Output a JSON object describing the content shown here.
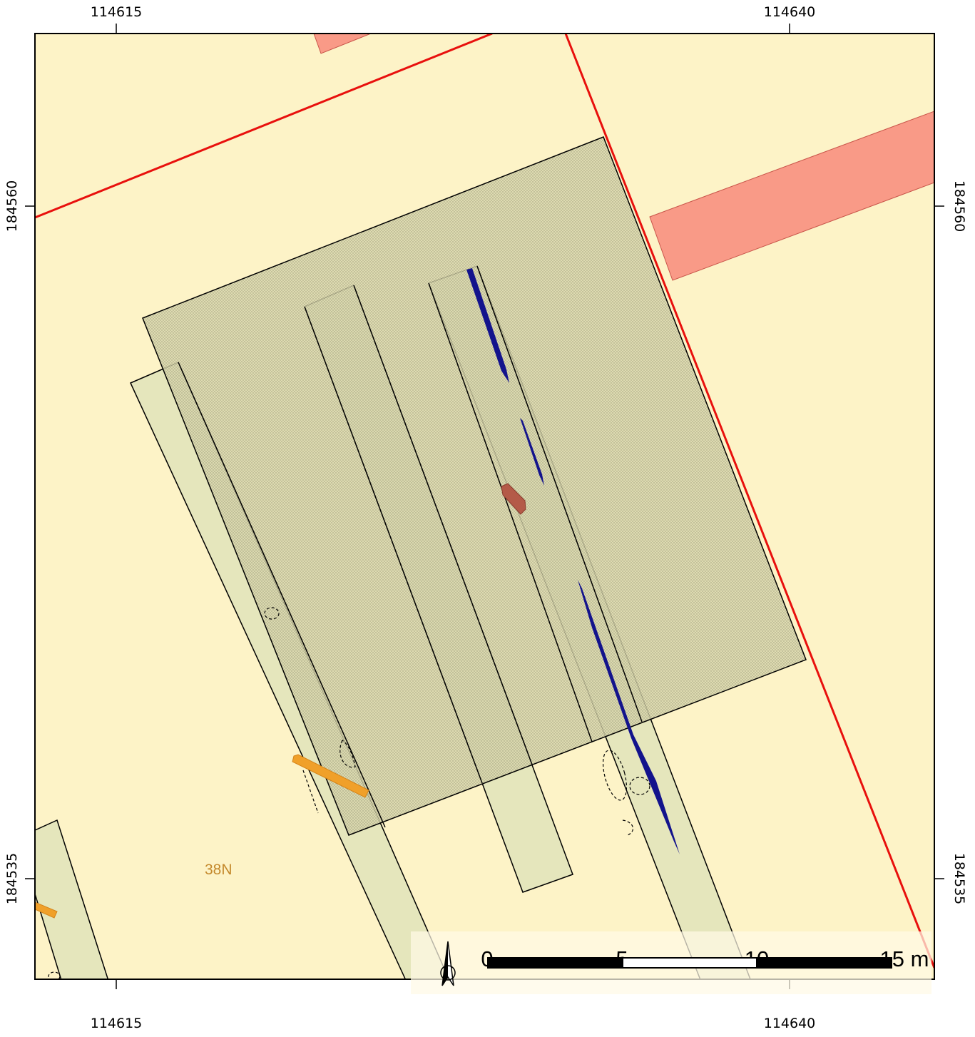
{
  "map": {
    "colors": {
      "background": "#fdf3c7",
      "trench_fill": "#e5e6bc",
      "excavation_area": "#d9d7ad",
      "building": "#f99a87",
      "boundary": "#e8100d",
      "linear_feature": "#13138c",
      "deposit": "#b45a48",
      "orange_feature": "#f0a02a",
      "label": "#c4892c"
    },
    "label": "38N"
  },
  "grid": {
    "x_labels": [
      "114615",
      "114640"
    ],
    "y_labels": [
      "184560",
      "184535"
    ]
  },
  "scalebar": {
    "labels": [
      "0",
      "5",
      "10",
      "15 m"
    ],
    "north_arrow": "north-arrow-icon"
  }
}
